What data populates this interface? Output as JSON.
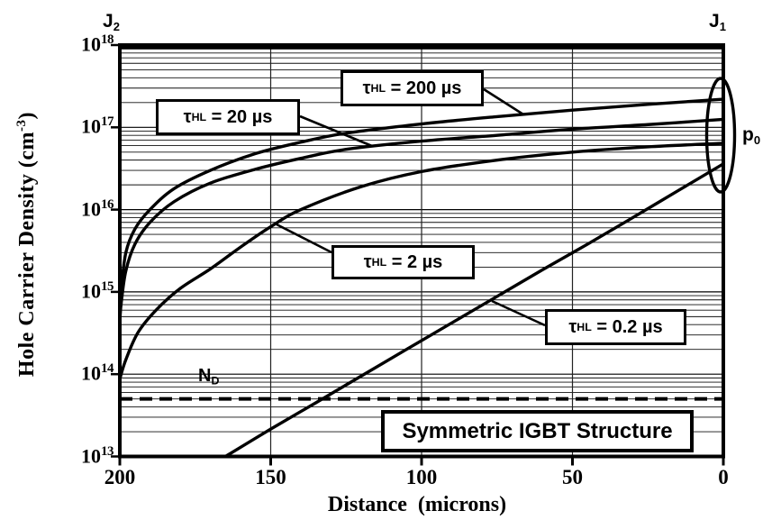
{
  "chart_data": {
    "type": "line",
    "title": "Symmetric IGBT Structure",
    "x_axis": {
      "title": "Distance  (microns)",
      "min": 0,
      "max": 200,
      "reversed": true,
      "tick_values": [
        200,
        150,
        100,
        50,
        0
      ],
      "tick_labels": [
        "200",
        "150",
        "100",
        "50",
        "0"
      ]
    },
    "y_axis": {
      "title_prefix": "Hole Carrier Density  (cm",
      "title_sup": "-3",
      "title_suffix": ")",
      "label": "Hole Carrier Density (cm^-3)",
      "scale": "log",
      "min": 10000000000000.0,
      "max": 1e+18,
      "base": "10",
      "tick_exponents": [
        "18",
        "17",
        "16",
        "15",
        "14",
        "13"
      ]
    },
    "grid": {
      "horizontal_log_minor": true,
      "vertical_at_microns": [
        150,
        100,
        50
      ]
    },
    "tau": {
      "sym": "τ",
      "sub": "HL"
    },
    "doping_line": {
      "sym": "N",
      "sub": "D",
      "value_cm3": 50000000000000.0,
      "style": "dashed"
    },
    "junction_left": {
      "sym": "J",
      "sub": "2"
    },
    "junction_right": {
      "sym": "J",
      "sub": "1"
    },
    "p0_label": {
      "sym": "p",
      "sub": "0"
    },
    "series": [
      {
        "id": "tau-hl-200us",
        "label": "τHL = 200 µs",
        "eq_text": " = 200 µs",
        "lifetime_us": 200,
        "p0_cm3": 2.2e+17,
        "points": [
          [
            0,
            2.2e+17
          ],
          [
            25,
            1.9e+17
          ],
          [
            50,
            1.62e+17
          ],
          [
            75,
            1.35e+17
          ],
          [
            100,
            1.1e+17
          ],
          [
            125,
            8.5e+16
          ],
          [
            140,
            6.6e+16
          ],
          [
            155,
            4.8e+16
          ],
          [
            170,
            3e+16
          ],
          [
            182,
            1.8e+16
          ],
          [
            190,
            1e+16
          ],
          [
            195,
            5800000000000000.0
          ],
          [
            198,
            3000000000000000.0
          ],
          [
            199.5,
            1100000000000000.0
          ],
          [
            200,
            550000000000000.0
          ]
        ]
      },
      {
        "id": "tau-hl-20us",
        "label": "τHL = 20 µs",
        "eq_text": " = 20 µs",
        "lifetime_us": 20,
        "p0_cm3": 1.25e+17,
        "points": [
          [
            0,
            1.25e+17
          ],
          [
            25,
            1.08e+17
          ],
          [
            50,
            9.5e+16
          ],
          [
            75,
            8e+16
          ],
          [
            100,
            6.8e+16
          ],
          [
            125,
            5.4e+16
          ],
          [
            140,
            4.2e+16
          ],
          [
            155,
            3.1e+16
          ],
          [
            170,
            2.1e+16
          ],
          [
            182,
            1.25e+16
          ],
          [
            190,
            7000000000000000.0
          ],
          [
            195,
            3800000000000000.0
          ],
          [
            198,
            1800000000000000.0
          ],
          [
            199.5,
            750000000000000.0
          ],
          [
            200,
            500000000000000.0
          ]
        ]
      },
      {
        "id": "tau-hl-2us",
        "label": "τHL = 2 µs",
        "eq_text": " = 2 µs",
        "lifetime_us": 2,
        "p0_cm3": 6.4e+16,
        "points": [
          [
            0,
            6.4e+16
          ],
          [
            25,
            5.8e+16
          ],
          [
            50,
            5e+16
          ],
          [
            75,
            4e+16
          ],
          [
            100,
            2.9e+16
          ],
          [
            120,
            1.9e+16
          ],
          [
            140,
            1e+16
          ],
          [
            150,
            6200000000000000.0
          ],
          [
            160,
            3500000000000000.0
          ],
          [
            170,
            1900000000000000.0
          ],
          [
            180,
            1100000000000000.0
          ],
          [
            188,
            600000000000000.0
          ],
          [
            194,
            320000000000000.0
          ],
          [
            198,
            150000000000000.0
          ],
          [
            200,
            90000000000000.0
          ]
        ]
      },
      {
        "id": "tau-hl-0-2us",
        "label": "τHL = 0.2 µs",
        "eq_text": " = 0.2 µs",
        "lifetime_us": 0.2,
        "p0_cm3": 3.6e+16,
        "points": [
          [
            0,
            3.6e+16
          ],
          [
            15,
            1.7e+16
          ],
          [
            30,
            8000000000000000.0
          ],
          [
            45,
            3800000000000000.0
          ],
          [
            60,
            1850000000000000.0
          ],
          [
            75,
            880000000000000.0
          ],
          [
            90,
            420000000000000.0
          ],
          [
            105,
            200000000000000.0
          ],
          [
            120,
            95000000000000.0
          ],
          [
            135,
            45000000000000.0
          ],
          [
            150,
            21500000000000.0
          ],
          [
            165,
            10000000000000.0
          ]
        ]
      }
    ]
  }
}
